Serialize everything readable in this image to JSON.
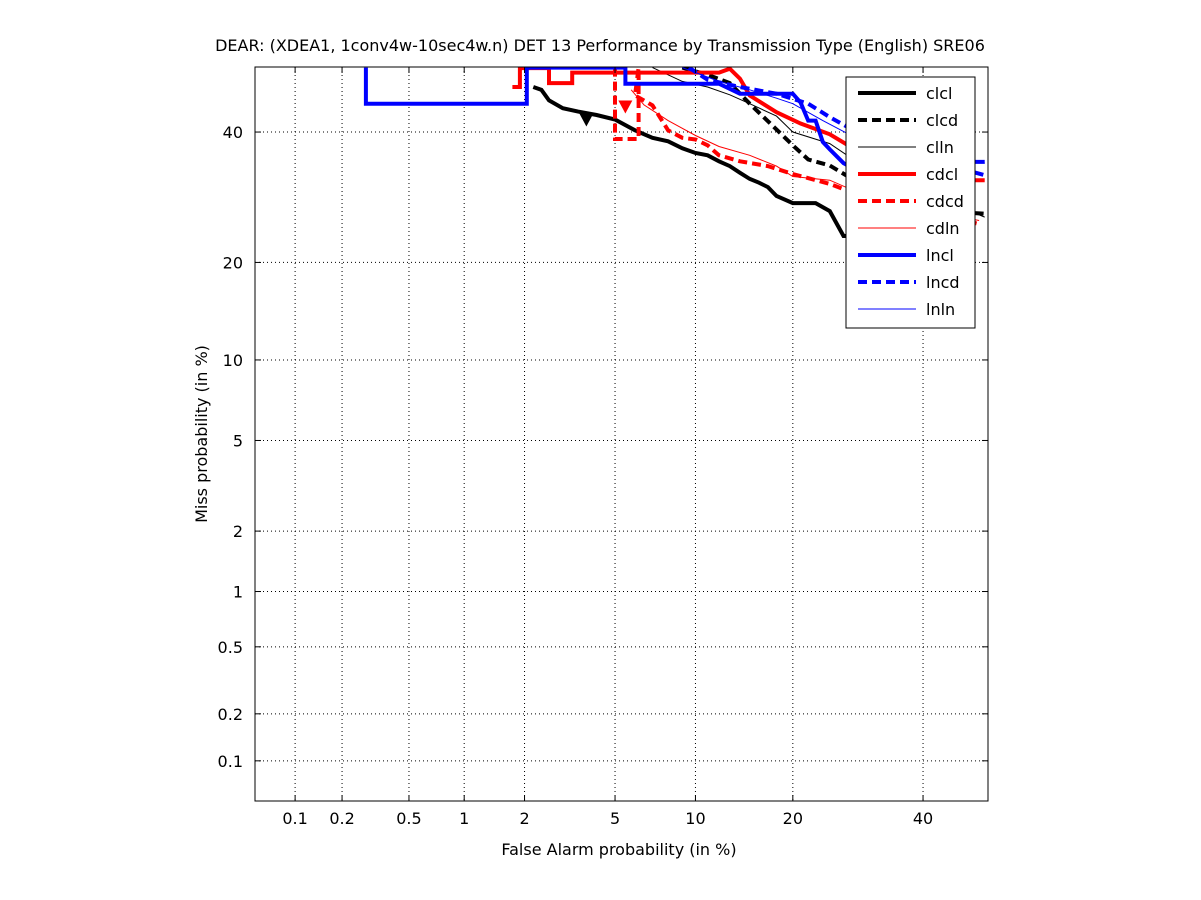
{
  "chart_data": {
    "type": "line",
    "scale": "probit (normal deviate)",
    "title": "DEAR: (XDEA1, 1conv4w-10sec4w.n) DET 13 Performance by Transmission Type (English) SRE06",
    "xlabel": "False Alarm probability (in %)",
    "ylabel": "Miss probability (in %)",
    "xlim": [
      0.0535,
      51.6
    ],
    "ylim": [
      0.0535,
      51.6
    ],
    "xticks": [
      0.1,
      0.2,
      0.5,
      1,
      2,
      5,
      10,
      20,
      40
    ],
    "xtick_labels": [
      "0.1",
      "0.2",
      "0.5",
      "1",
      "2",
      "5",
      "10",
      "20",
      "40"
    ],
    "yticks": [
      0.1,
      0.2,
      0.5,
      1,
      2,
      5,
      10,
      20,
      40
    ],
    "ytick_labels": [
      "0.1",
      "0.2",
      "0.5",
      "1",
      "2",
      "5",
      "10",
      "20",
      "40"
    ],
    "grid": true,
    "legend_position": "top-right",
    "series": [
      {
        "name": "clcl",
        "color": "#000000",
        "dash": "solid",
        "width": "thick",
        "points": [
          [
            2.2,
            48
          ],
          [
            2.4,
            47.5
          ],
          [
            2.6,
            45.6
          ],
          [
            3.0,
            44.2
          ],
          [
            3.5,
            43.6
          ],
          [
            4.2,
            43.0
          ],
          [
            5.0,
            42.2
          ],
          [
            6.0,
            40.3
          ],
          [
            7.0,
            39.0
          ],
          [
            8.0,
            38.4
          ],
          [
            9.0,
            37.2
          ],
          [
            10,
            36.4
          ],
          [
            11,
            36.0
          ],
          [
            12,
            35.0
          ],
          [
            13,
            34.2
          ],
          [
            14,
            33.1
          ],
          [
            15,
            32.1
          ],
          [
            16,
            31.5
          ],
          [
            17,
            30.8
          ],
          [
            18,
            29.4
          ],
          [
            20,
            28.3
          ],
          [
            23,
            28.3
          ],
          [
            25,
            27.1
          ],
          [
            27,
            23.5
          ],
          [
            29,
            23.5
          ]
        ],
        "marker": [
          3.8,
          42.2
        ]
      },
      {
        "name": "clcd",
        "color": "#000000",
        "dash": "dashed",
        "width": "thick",
        "points": [
          [
            9.0,
            51.5
          ],
          [
            11,
            50.2
          ],
          [
            13,
            48.7
          ],
          [
            15,
            45.0
          ],
          [
            17,
            41.9
          ],
          [
            20,
            37.7
          ],
          [
            22,
            35.3
          ],
          [
            25,
            34.3
          ],
          [
            28,
            32.3
          ],
          [
            33,
            30.0
          ],
          [
            38,
            28.7
          ],
          [
            45,
            27.0
          ],
          [
            51,
            26.7
          ]
        ]
      },
      {
        "name": "clln",
        "color": "#000000",
        "dash": "solid",
        "width": "thin",
        "points": [
          [
            7.0,
            51.5
          ],
          [
            9.0,
            49.0
          ],
          [
            11,
            48.0
          ],
          [
            13,
            46.6
          ],
          [
            15,
            45.0
          ],
          [
            18,
            42.8
          ],
          [
            20,
            40.0
          ],
          [
            25,
            38.0
          ],
          [
            30,
            34.2
          ],
          [
            35,
            31.9
          ],
          [
            40,
            29.3
          ],
          [
            46,
            27.9
          ],
          [
            51,
            26.2
          ]
        ]
      },
      {
        "name": "cdcl",
        "color": "#ff0000",
        "dash": "solid",
        "width": "thick",
        "points": [
          [
            1.75,
            48.0
          ],
          [
            1.9,
            48.0
          ],
          [
            1.9,
            51.4
          ],
          [
            2.6,
            51.4
          ],
          [
            2.6,
            48.7
          ],
          [
            3.3,
            48.7
          ],
          [
            3.3,
            50.6
          ],
          [
            6.0,
            50.6
          ],
          [
            8.0,
            50.6
          ],
          [
            10,
            50.6
          ],
          [
            12,
            50.6
          ],
          [
            13,
            51.3
          ],
          [
            14,
            49.5
          ],
          [
            15,
            46.5
          ],
          [
            18,
            43.5
          ],
          [
            21,
            41.5
          ],
          [
            25,
            39.6
          ],
          [
            28,
            37.5
          ],
          [
            33,
            34.8
          ],
          [
            38,
            33.6
          ],
          [
            42,
            31.9
          ],
          [
            51,
            31.9
          ]
        ]
      },
      {
        "name": "cdcd",
        "color": "#ff0000",
        "dash": "dashed",
        "width": "thick",
        "points": [
          [
            5.0,
            51.5
          ],
          [
            5.0,
            38.8
          ],
          [
            6.2,
            38.8
          ],
          [
            6.2,
            51.5
          ],
          [
            6.0,
            46.5
          ],
          [
            7.0,
            44.7
          ],
          [
            8.0,
            40.3
          ],
          [
            9.0,
            39.0
          ],
          [
            10,
            38.7
          ],
          [
            11,
            37.7
          ],
          [
            12,
            36.0
          ],
          [
            14,
            35.0
          ],
          [
            17,
            34.2
          ],
          [
            20,
            32.9
          ],
          [
            25,
            31.3
          ],
          [
            30,
            29.3
          ],
          [
            35,
            28.0
          ],
          [
            40,
            27.4
          ],
          [
            45,
            26.2
          ],
          [
            50,
            25.2
          ]
        ],
        "marker": [
          5.5,
          44.5
        ]
      },
      {
        "name": "cdln",
        "color": "#ff0000",
        "dash": "solid",
        "width": "thin",
        "points": [
          [
            5.8,
            47.5
          ],
          [
            6.5,
            44.8
          ],
          [
            8.0,
            42.0
          ],
          [
            10,
            39.4
          ],
          [
            12,
            37.5
          ],
          [
            15,
            36.0
          ],
          [
            18,
            34.2
          ],
          [
            20,
            32.5
          ],
          [
            25,
            31.9
          ],
          [
            30,
            29.6
          ],
          [
            35,
            28.7
          ],
          [
            40,
            27.0
          ],
          [
            45,
            26.5
          ],
          [
            50,
            25.7
          ]
        ]
      },
      {
        "name": "lncl",
        "color": "#0000ff",
        "dash": "solid",
        "width": "thick",
        "points": [
          [
            0.28,
            51.5
          ],
          [
            0.28,
            45.0
          ],
          [
            2.05,
            45.0
          ],
          [
            2.05,
            51.5
          ],
          [
            5.5,
            51.5
          ],
          [
            5.5,
            48.6
          ],
          [
            9.5,
            48.6
          ],
          [
            12,
            48.6
          ],
          [
            14,
            46.8
          ],
          [
            20,
            46.8
          ],
          [
            21,
            45.2
          ],
          [
            22,
            42.0
          ],
          [
            23,
            42.0
          ],
          [
            24,
            38.3
          ],
          [
            25,
            37.0
          ],
          [
            27,
            34.7
          ],
          [
            29,
            33.5
          ],
          [
            31,
            33.5
          ],
          [
            33,
            34.9
          ],
          [
            51,
            34.9
          ]
        ]
      },
      {
        "name": "lncd",
        "color": "#0000ff",
        "dash": "dashed",
        "width": "thick",
        "points": [
          [
            9.5,
            51.5
          ],
          [
            11,
            49.3
          ],
          [
            14,
            48.0
          ],
          [
            18,
            46.8
          ],
          [
            22,
            45.0
          ],
          [
            25,
            42.6
          ],
          [
            29,
            40.0
          ],
          [
            33,
            37.3
          ],
          [
            38,
            35.4
          ],
          [
            43,
            34.7
          ],
          [
            47,
            33.7
          ],
          [
            51,
            32.7
          ]
        ]
      },
      {
        "name": "lnln",
        "color": "#0000ff",
        "dash": "solid",
        "width": "thin",
        "points": [
          [
            9.0,
            51.5
          ],
          [
            12,
            49.0
          ],
          [
            15,
            47.5
          ],
          [
            18,
            46.0
          ],
          [
            20,
            45.0
          ],
          [
            24,
            42.0
          ],
          [
            28,
            39.5
          ],
          [
            32,
            38.0
          ],
          [
            36,
            36.5
          ],
          [
            40,
            36.0
          ],
          [
            45,
            35.5
          ],
          [
            51,
            34.7
          ]
        ]
      }
    ]
  }
}
